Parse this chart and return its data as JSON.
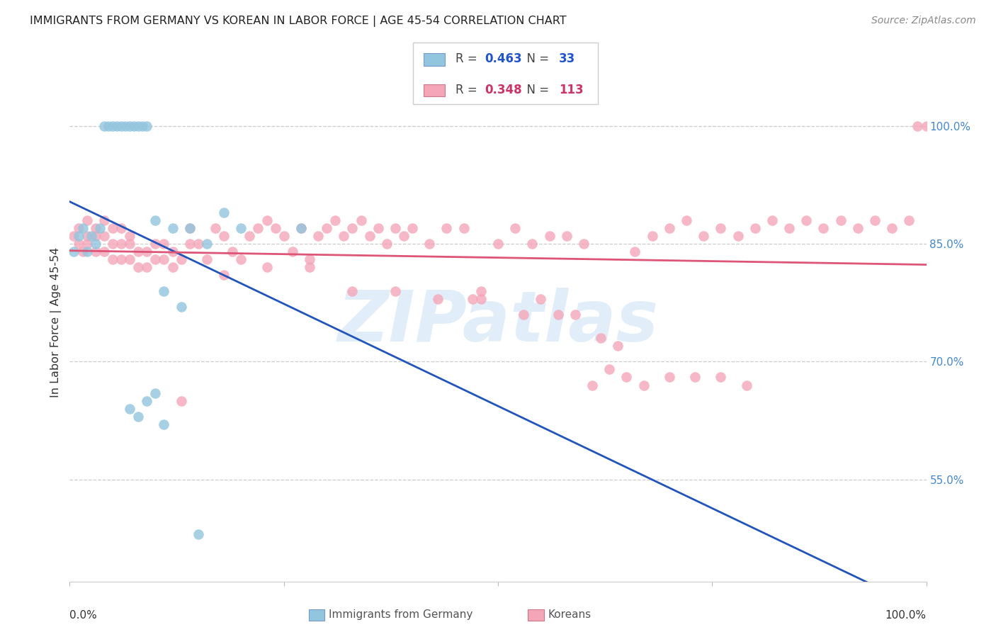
{
  "title": "IMMIGRANTS FROM GERMANY VS KOREAN IN LABOR FORCE | AGE 45-54 CORRELATION CHART",
  "source": "Source: ZipAtlas.com",
  "ylabel": "In Labor Force | Age 45-54",
  "yticks_labels": [
    "55.0%",
    "70.0%",
    "85.0%",
    "100.0%"
  ],
  "ytick_vals": [
    0.55,
    0.7,
    0.85,
    1.0
  ],
  "xlim": [
    0.0,
    1.0
  ],
  "ylim": [
    0.42,
    1.08
  ],
  "R_blue": 0.463,
  "N_blue": 33,
  "R_pink": 0.348,
  "N_pink": 113,
  "blue_color": "#92c5de",
  "pink_color": "#f4a6b8",
  "blue_line_color": "#2255bb",
  "pink_line_color": "#dd5577",
  "blue_scatter_x": [
    0.005,
    0.01,
    0.015,
    0.02,
    0.025,
    0.03,
    0.035,
    0.04,
    0.045,
    0.05,
    0.055,
    0.06,
    0.065,
    0.07,
    0.075,
    0.08,
    0.085,
    0.09,
    0.1,
    0.11,
    0.12,
    0.13,
    0.14,
    0.16,
    0.18,
    0.2,
    0.07,
    0.08,
    0.09,
    0.1,
    0.11,
    0.27,
    0.15
  ],
  "blue_scatter_y": [
    0.84,
    0.86,
    0.87,
    0.84,
    0.86,
    0.85,
    0.87,
    1.0,
    1.0,
    1.0,
    1.0,
    1.0,
    1.0,
    1.0,
    1.0,
    1.0,
    1.0,
    1.0,
    0.88,
    0.79,
    0.87,
    0.77,
    0.87,
    0.85,
    0.89,
    0.87,
    0.64,
    0.63,
    0.65,
    0.66,
    0.62,
    0.87,
    0.48
  ],
  "pink_scatter_x": [
    0.005,
    0.01,
    0.01,
    0.015,
    0.02,
    0.02,
    0.02,
    0.03,
    0.03,
    0.03,
    0.04,
    0.04,
    0.04,
    0.05,
    0.05,
    0.05,
    0.06,
    0.06,
    0.06,
    0.07,
    0.07,
    0.07,
    0.08,
    0.08,
    0.09,
    0.09,
    0.1,
    0.1,
    0.11,
    0.11,
    0.12,
    0.12,
    0.13,
    0.14,
    0.14,
    0.15,
    0.16,
    0.17,
    0.18,
    0.19,
    0.2,
    0.21,
    0.22,
    0.23,
    0.24,
    0.25,
    0.26,
    0.27,
    0.28,
    0.29,
    0.3,
    0.31,
    0.32,
    0.33,
    0.34,
    0.35,
    0.36,
    0.37,
    0.38,
    0.39,
    0.4,
    0.42,
    0.44,
    0.46,
    0.48,
    0.5,
    0.52,
    0.54,
    0.56,
    0.58,
    0.6,
    0.62,
    0.64,
    0.66,
    0.68,
    0.7,
    0.72,
    0.74,
    0.76,
    0.78,
    0.8,
    0.82,
    0.84,
    0.86,
    0.88,
    0.9,
    0.92,
    0.94,
    0.96,
    0.98,
    1.0,
    0.99,
    0.48,
    0.53,
    0.55,
    0.57,
    0.59,
    0.61,
    0.63,
    0.65,
    0.67,
    0.7,
    0.73,
    0.76,
    0.79,
    0.47,
    0.43,
    0.38,
    0.33,
    0.28,
    0.23,
    0.18,
    0.13
  ],
  "pink_scatter_y": [
    0.86,
    0.85,
    0.87,
    0.84,
    0.85,
    0.86,
    0.88,
    0.84,
    0.86,
    0.87,
    0.84,
    0.86,
    0.88,
    0.83,
    0.85,
    0.87,
    0.83,
    0.85,
    0.87,
    0.83,
    0.85,
    0.86,
    0.82,
    0.84,
    0.82,
    0.84,
    0.83,
    0.85,
    0.83,
    0.85,
    0.82,
    0.84,
    0.83,
    0.85,
    0.87,
    0.85,
    0.83,
    0.87,
    0.86,
    0.84,
    0.83,
    0.86,
    0.87,
    0.88,
    0.87,
    0.86,
    0.84,
    0.87,
    0.83,
    0.86,
    0.87,
    0.88,
    0.86,
    0.87,
    0.88,
    0.86,
    0.87,
    0.85,
    0.87,
    0.86,
    0.87,
    0.85,
    0.87,
    0.87,
    0.79,
    0.85,
    0.87,
    0.85,
    0.86,
    0.86,
    0.85,
    0.73,
    0.72,
    0.84,
    0.86,
    0.87,
    0.88,
    0.86,
    0.87,
    0.86,
    0.87,
    0.88,
    0.87,
    0.88,
    0.87,
    0.88,
    0.87,
    0.88,
    0.87,
    0.88,
    1.0,
    1.0,
    0.78,
    0.76,
    0.78,
    0.76,
    0.76,
    0.67,
    0.69,
    0.68,
    0.67,
    0.68,
    0.68,
    0.68,
    0.67,
    0.78,
    0.78,
    0.79,
    0.79,
    0.82,
    0.82,
    0.81,
    0.65
  ]
}
